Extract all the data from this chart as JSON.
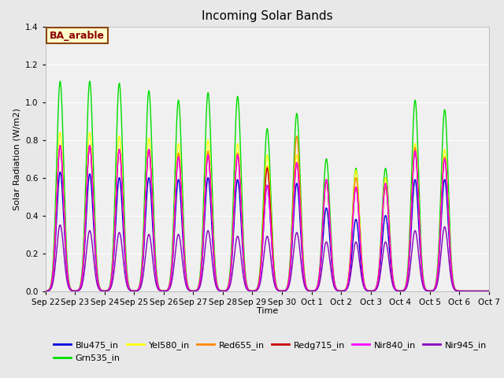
{
  "title": "Incoming Solar Bands",
  "xlabel": "Time",
  "ylabel": "Solar Radiation (W/m2)",
  "fig_facecolor": "#e8e8e8",
  "plot_facecolor": "#f0f0f0",
  "annotation_text": "BA_arable",
  "annotation_bg": "#ffffcc",
  "annotation_border": "#8B4513",
  "annotation_text_color": "#8B0000",
  "ylim": [
    0,
    1.4
  ],
  "xlim": [
    0,
    15
  ],
  "series_order": [
    "Blu475_in",
    "Grn535_in",
    "Yel580_in",
    "Red655_in",
    "Redg715_in",
    "Nir840_in",
    "Nir945_in"
  ],
  "series": {
    "Blu475_in": {
      "color": "#0000dd",
      "lw": 1.0
    },
    "Grn535_in": {
      "color": "#00dd00",
      "lw": 1.0
    },
    "Yel580_in": {
      "color": "#ffff00",
      "lw": 1.0
    },
    "Red655_in": {
      "color": "#ff8800",
      "lw": 1.0
    },
    "Redg715_in": {
      "color": "#cc0000",
      "lw": 1.0
    },
    "Nir840_in": {
      "color": "#ff00ff",
      "lw": 1.0
    },
    "Nir945_in": {
      "color": "#8800bb",
      "lw": 1.0
    }
  },
  "n_days": 15,
  "day_labels": [
    "Sep 22",
    "Sep 23",
    "Sep 24",
    "Sep 25",
    "Sep 26",
    "Sep 27",
    "Sep 28",
    "Sep 29",
    "Sep 30",
    "Oct 1",
    "Oct 2",
    "Oct 3",
    "Oct 4",
    "Oct 5",
    "Oct 6",
    "Oct 7"
  ],
  "peak_values": {
    "Grn535_in": [
      1.11,
      1.11,
      1.1,
      1.06,
      1.01,
      1.05,
      1.03,
      0.86,
      0.94,
      0.7,
      0.65,
      0.65,
      1.01,
      0.96,
      0.0
    ],
    "Blu475_in": [
      0.63,
      0.62,
      0.6,
      0.6,
      0.59,
      0.6,
      0.59,
      0.56,
      0.57,
      0.44,
      0.38,
      0.4,
      0.59,
      0.59,
      0.0
    ],
    "Yel580_in": [
      0.84,
      0.84,
      0.82,
      0.81,
      0.78,
      0.8,
      0.78,
      0.72,
      0.72,
      0.59,
      0.64,
      0.6,
      0.78,
      0.75,
      0.0
    ],
    "Red655_in": [
      0.77,
      0.77,
      0.75,
      0.75,
      0.73,
      0.74,
      0.73,
      0.66,
      0.82,
      0.58,
      0.6,
      0.55,
      0.76,
      0.71,
      0.0
    ],
    "Redg715_in": [
      0.77,
      0.77,
      0.75,
      0.75,
      0.71,
      0.72,
      0.72,
      0.65,
      0.68,
      0.59,
      0.55,
      0.57,
      0.74,
      0.7,
      0.0
    ],
    "Nir840_in": [
      0.77,
      0.77,
      0.75,
      0.75,
      0.71,
      0.72,
      0.72,
      0.56,
      0.68,
      0.59,
      0.55,
      0.57,
      0.74,
      0.7,
      0.0
    ],
    "Nir945_in": [
      0.35,
      0.32,
      0.31,
      0.3,
      0.3,
      0.32,
      0.29,
      0.29,
      0.31,
      0.26,
      0.26,
      0.26,
      0.32,
      0.34,
      0.0
    ]
  },
  "grid_color": "#ffffff",
  "yticks": [
    0.0,
    0.2,
    0.4,
    0.6,
    0.8,
    1.0,
    1.2,
    1.4
  ]
}
